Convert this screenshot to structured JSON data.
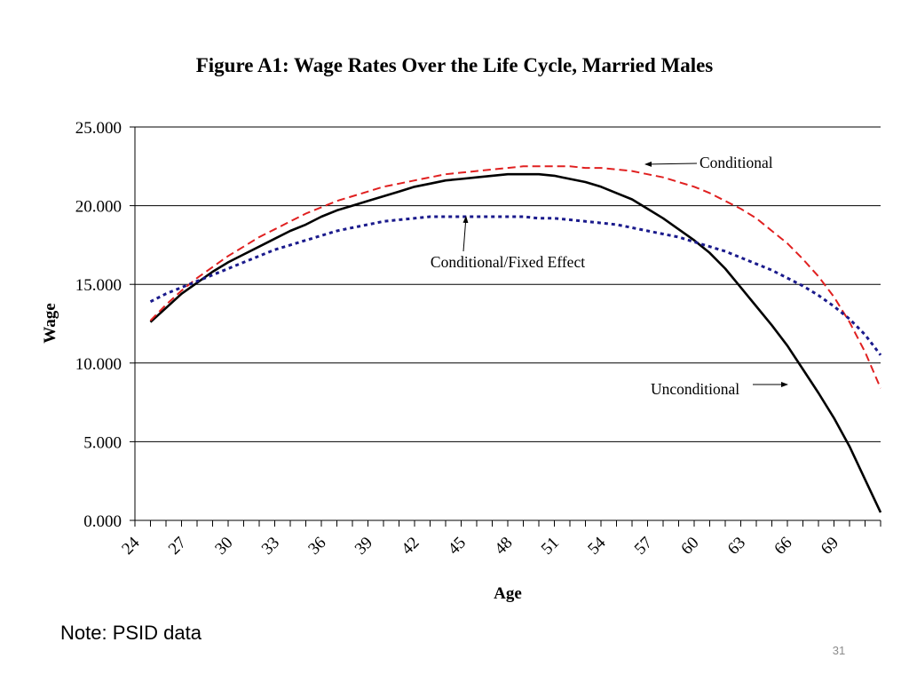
{
  "chart_data": {
    "type": "line",
    "title": "Figure A1:  Wage Rates Over the Life Cycle, Married Males",
    "xlabel": "Age",
    "ylabel": "Wage",
    "xlim": [
      24,
      72
    ],
    "ylim": [
      0,
      25
    ],
    "yticks": [
      "0.000",
      "5.000",
      "10.000",
      "15.000",
      "20.000",
      "25.000"
    ],
    "xtick_labels": [
      "24",
      "27",
      "30",
      "33",
      "36",
      "39",
      "42",
      "45",
      "48",
      "51",
      "54",
      "57",
      "60",
      "63",
      "66",
      "69"
    ],
    "grid": "horizontal",
    "legend": "none",
    "x": [
      25,
      26,
      27,
      28,
      29,
      30,
      31,
      32,
      33,
      34,
      35,
      36,
      37,
      38,
      39,
      40,
      41,
      42,
      43,
      44,
      45,
      46,
      47,
      48,
      49,
      50,
      51,
      52,
      53,
      54,
      55,
      56,
      57,
      58,
      59,
      60,
      61,
      62,
      63,
      64,
      65,
      66,
      67,
      68,
      69,
      70,
      71,
      72
    ],
    "series": [
      {
        "name": "Unconditional",
        "color": "#000000",
        "style": "solid",
        "values": [
          12.6,
          13.5,
          14.4,
          15.1,
          15.8,
          16.4,
          16.9,
          17.4,
          17.9,
          18.4,
          18.8,
          19.3,
          19.7,
          20.0,
          20.3,
          20.6,
          20.9,
          21.2,
          21.4,
          21.6,
          21.7,
          21.8,
          21.9,
          22.0,
          22.0,
          22.0,
          21.9,
          21.7,
          21.5,
          21.2,
          20.8,
          20.4,
          19.8,
          19.2,
          18.5,
          17.8,
          17.0,
          16.0,
          14.8,
          13.6,
          12.4,
          11.1,
          9.6,
          8.1,
          6.5,
          4.7,
          2.6,
          0.5
        ]
      },
      {
        "name": "Conditional",
        "color": "#e02020",
        "style": "dashed",
        "values": [
          12.7,
          13.7,
          14.6,
          15.4,
          16.1,
          16.8,
          17.4,
          18.0,
          18.5,
          19.0,
          19.5,
          19.9,
          20.3,
          20.6,
          20.9,
          21.2,
          21.4,
          21.6,
          21.8,
          22.0,
          22.1,
          22.2,
          22.3,
          22.4,
          22.5,
          22.5,
          22.5,
          22.5,
          22.4,
          22.4,
          22.3,
          22.2,
          22.0,
          21.8,
          21.5,
          21.2,
          20.8,
          20.3,
          19.8,
          19.2,
          18.4,
          17.6,
          16.6,
          15.5,
          14.2,
          12.6,
          10.7,
          8.4
        ]
      },
      {
        "name": "Conditional/Fixed Effect",
        "color": "#1a1a8c",
        "style": "dotted",
        "values": [
          13.9,
          14.4,
          14.8,
          15.2,
          15.6,
          16.0,
          16.4,
          16.8,
          17.2,
          17.5,
          17.8,
          18.1,
          18.4,
          18.6,
          18.8,
          19.0,
          19.1,
          19.2,
          19.3,
          19.3,
          19.3,
          19.3,
          19.3,
          19.3,
          19.3,
          19.2,
          19.2,
          19.1,
          19.0,
          18.9,
          18.8,
          18.6,
          18.4,
          18.2,
          18.0,
          17.7,
          17.4,
          17.1,
          16.7,
          16.3,
          15.9,
          15.4,
          14.9,
          14.3,
          13.6,
          12.8,
          11.8,
          10.5
        ]
      }
    ],
    "annotations": [
      {
        "text": "Conditional",
        "series": "Conditional"
      },
      {
        "text": "Conditional/Fixed Effect",
        "series": "Conditional/Fixed Effect"
      },
      {
        "text": "Unconditional",
        "series": "Unconditional"
      }
    ]
  },
  "note": "Note:  PSID data",
  "slide_number": "31"
}
